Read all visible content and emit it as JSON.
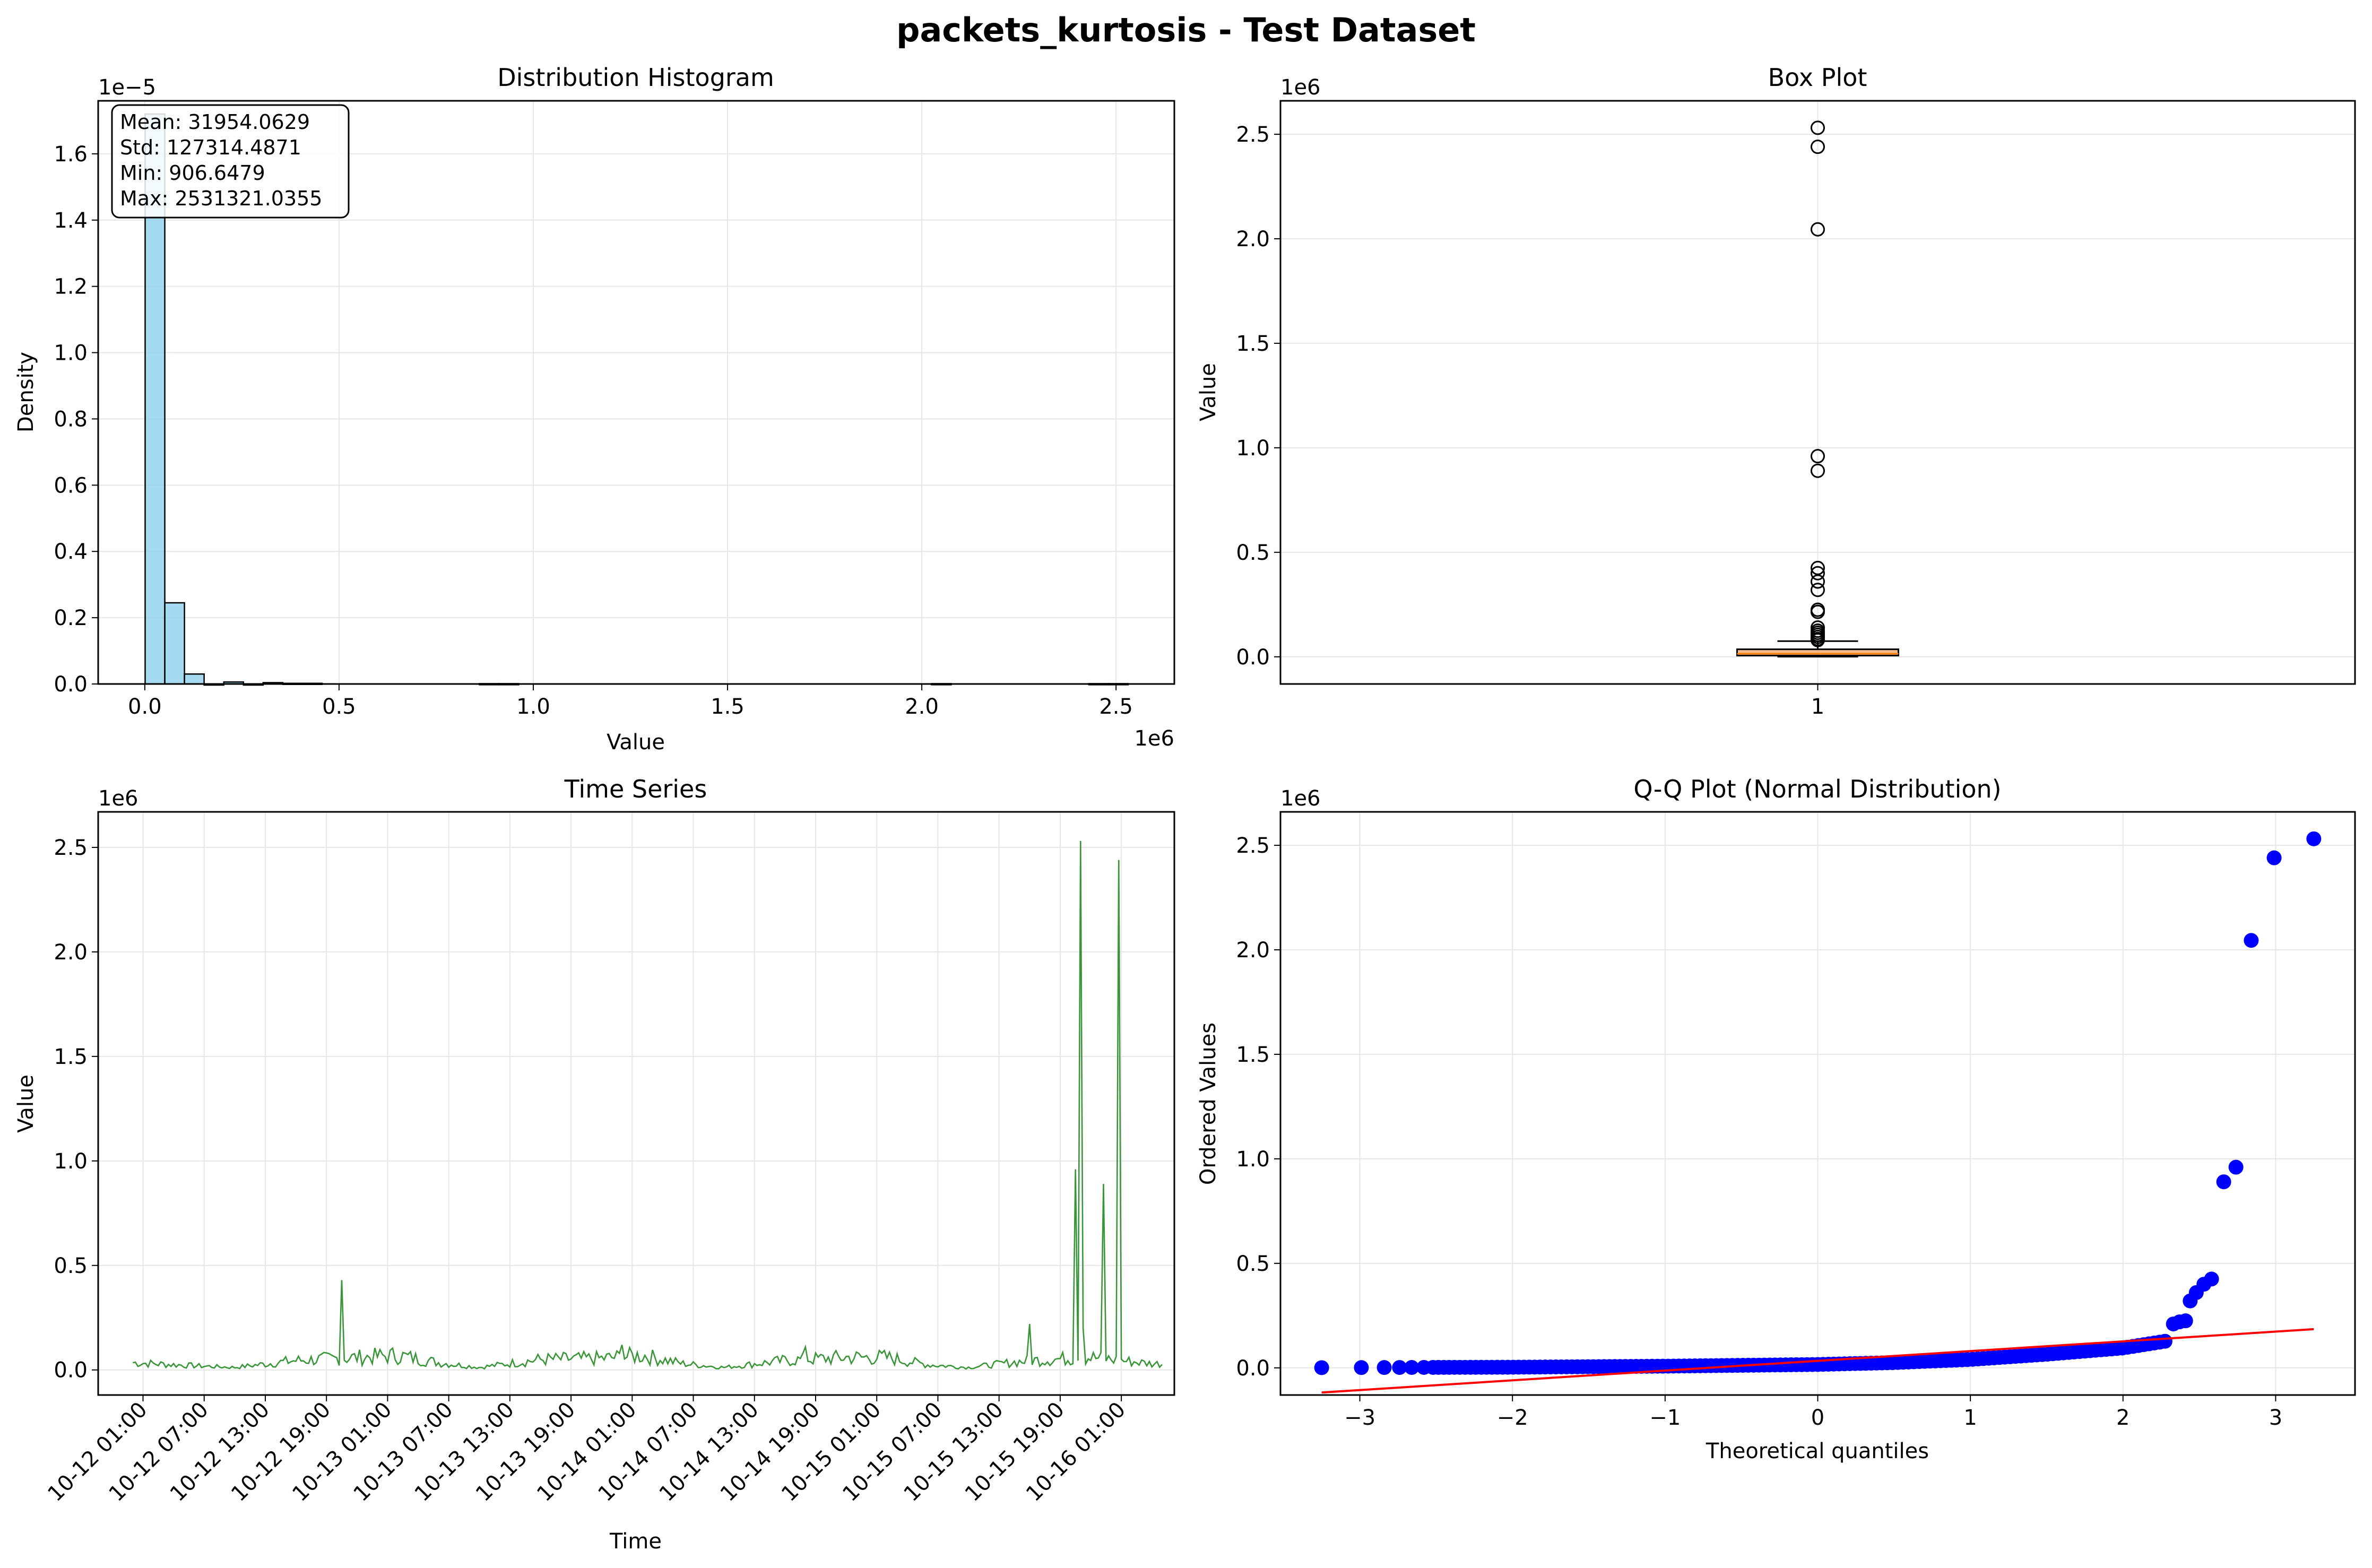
{
  "figure": {
    "title": "packets_kurtosis - Test Dataset"
  },
  "colors": {
    "hist_fill": "#87ceeb",
    "box_fill": "#f4a460",
    "line": "#228b22",
    "qq_points": "#0000ff",
    "qq_line": "#ff0000",
    "grid": "#e6e6e6"
  },
  "chart_data": [
    {
      "type": "bar",
      "title": "Distribution Histogram",
      "xlabel": "Value",
      "ylabel": "Density",
      "x_offset_label": "1e6",
      "y_offset_label": "1e−5",
      "xlim": [
        -0.12,
        2.65
      ],
      "ylim": [
        0,
        1.76
      ],
      "xticks": [
        0.0,
        0.5,
        1.0,
        1.5,
        2.0,
        2.5
      ],
      "xtick_labels": [
        "0.0",
        "0.5",
        "1.0",
        "1.5",
        "2.0",
        "2.5"
      ],
      "yticks": [
        0.0,
        0.2,
        0.4,
        0.6,
        0.8,
        1.0,
        1.2,
        1.4,
        1.6
      ],
      "ytick_labels": [
        "0.0",
        "0.2",
        "0.4",
        "0.6",
        "0.8",
        "1.0",
        "1.2",
        "1.4",
        "1.6"
      ],
      "bin_width": 0.0506,
      "bins": [
        {
          "x": 0.0009,
          "density": 1.72
        },
        {
          "x": 0.0515,
          "density": 0.245
        },
        {
          "x": 0.1021,
          "density": 0.03
        },
        {
          "x": 0.1527,
          "density": 0.0
        },
        {
          "x": 0.2034,
          "density": 0.006
        },
        {
          "x": 0.254,
          "density": 0.0
        },
        {
          "x": 0.3046,
          "density": 0.004
        },
        {
          "x": 0.3552,
          "density": 0.002
        },
        {
          "x": 0.4058,
          "density": 0.002
        },
        {
          "x": 0.8613,
          "density": 0.001
        },
        {
          "x": 0.9119,
          "density": 0.001
        },
        {
          "x": 2.0251,
          "density": 0.001
        },
        {
          "x": 2.43,
          "density": 0.001
        },
        {
          "x": 2.4806,
          "density": 0.001
        }
      ],
      "stats_lines": [
        "Mean: 31954.0629",
        "Std: 127314.4871",
        "Min: 906.6479",
        "Max: 2531321.0355"
      ],
      "grid": true
    },
    {
      "type": "box",
      "title": "Box Plot",
      "ylabel": "Value",
      "y_offset_label": "1e6",
      "ylim": [
        -0.13,
        2.66
      ],
      "yticks": [
        0.0,
        0.5,
        1.0,
        1.5,
        2.0,
        2.5
      ],
      "ytick_labels": [
        "0.0",
        "0.5",
        "1.0",
        "1.5",
        "2.0",
        "2.5"
      ],
      "xtick_labels": [
        "1"
      ],
      "box": {
        "q1": 0.006,
        "median": 0.015,
        "q3": 0.036,
        "whisker_low": 0.0009,
        "whisker_high": 0.075
      },
      "outliers": [
        2.531,
        2.44,
        2.045,
        0.96,
        0.89,
        0.425,
        0.4,
        0.36,
        0.32,
        0.225,
        0.215,
        0.14,
        0.125,
        0.115,
        0.105,
        0.095,
        0.085,
        0.08
      ],
      "grid": true
    },
    {
      "type": "line",
      "title": "Time Series",
      "xlabel": "Time",
      "ylabel": "Value",
      "y_offset_label": "1e6",
      "x_start": "10-12 00:00",
      "x_end": "10-16 05:00",
      "ylim": [
        -0.12,
        2.67
      ],
      "yticks": [
        0.0,
        0.5,
        1.0,
        1.5,
        2.0,
        2.5
      ],
      "ytick_labels": [
        "0.0",
        "0.5",
        "1.0",
        "1.5",
        "2.0",
        "2.5"
      ],
      "xticks": [
        "10-12 01:00",
        "10-12 07:00",
        "10-12 13:00",
        "10-12 19:00",
        "10-13 01:00",
        "10-13 07:00",
        "10-13 13:00",
        "10-13 19:00",
        "10-14 01:00",
        "10-14 07:00",
        "10-14 13:00",
        "10-14 19:00",
        "10-15 01:00",
        "10-15 07:00",
        "10-15 13:00",
        "10-15 19:00",
        "10-16 01:00"
      ],
      "baseline_pattern": [
        {
          "t": "10-12 00:00",
          "v": 0.035
        },
        {
          "t": "10-12 06:00",
          "v": 0.02
        },
        {
          "t": "10-12 10:00",
          "v": 0.012
        },
        {
          "t": "10-12 16:00",
          "v": 0.045
        },
        {
          "t": "10-12 22:00",
          "v": 0.06
        },
        {
          "t": "10-13 02:00",
          "v": 0.07
        },
        {
          "t": "10-13 06:00",
          "v": 0.035
        },
        {
          "t": "10-13 10:00",
          "v": 0.012
        },
        {
          "t": "10-13 16:00",
          "v": 0.05
        },
        {
          "t": "10-13 22:00",
          "v": 0.055
        },
        {
          "t": "10-14 02:00",
          "v": 0.07
        },
        {
          "t": "10-14 06:00",
          "v": 0.03
        },
        {
          "t": "10-14 10:00",
          "v": 0.012
        },
        {
          "t": "10-14 16:00",
          "v": 0.045
        },
        {
          "t": "10-14 22:00",
          "v": 0.06
        },
        {
          "t": "10-15 02:00",
          "v": 0.06
        },
        {
          "t": "10-15 06:00",
          "v": 0.025
        },
        {
          "t": "10-15 10:00",
          "v": 0.012
        },
        {
          "t": "10-15 16:00",
          "v": 0.045
        },
        {
          "t": "10-15 22:00",
          "v": 0.06
        },
        {
          "t": "10-16 04:00",
          "v": 0.03
        }
      ],
      "spikes": [
        {
          "t": "10-12 20:30",
          "v": 0.43
        },
        {
          "t": "10-14 00:00",
          "v": 0.12
        },
        {
          "t": "10-14 18:00",
          "v": 0.11
        },
        {
          "t": "10-15 16:00",
          "v": 0.22
        },
        {
          "t": "10-15 20:30",
          "v": 0.96
        },
        {
          "t": "10-15 21:00",
          "v": 2.531
        },
        {
          "t": "10-15 21:20",
          "v": 0.2
        },
        {
          "t": "10-15 23:10",
          "v": 0.89
        },
        {
          "t": "10-16 00:45",
          "v": 2.44
        }
      ],
      "grid": true
    },
    {
      "type": "scatter",
      "title": "Q-Q Plot (Normal Distribution)",
      "xlabel": "Theoretical quantiles",
      "ylabel": "Ordered Values",
      "y_offset_label": "1e6",
      "xlim": [
        -3.52,
        3.52
      ],
      "ylim": [
        -0.13,
        2.66
      ],
      "xticks": [
        -3,
        -2,
        -1,
        0,
        1,
        2,
        3
      ],
      "xtick_labels": [
        "−3",
        "−2",
        "−1",
        "0",
        "1",
        "2",
        "3"
      ],
      "yticks": [
        0.0,
        0.5,
        1.0,
        1.5,
        2.0,
        2.5
      ],
      "ytick_labels": [
        "0.0",
        "0.5",
        "1.0",
        "1.5",
        "2.0",
        "2.5"
      ],
      "curve": [
        {
          "x": -3.25,
          "y": 0.0009
        },
        {
          "x": -2.0,
          "y": 0.003
        },
        {
          "x": -1.0,
          "y": 0.008
        },
        {
          "x": 0.0,
          "y": 0.016
        },
        {
          "x": 0.5,
          "y": 0.025
        },
        {
          "x": 1.0,
          "y": 0.04
        },
        {
          "x": 1.5,
          "y": 0.065
        },
        {
          "x": 2.0,
          "y": 0.095
        },
        {
          "x": 2.3,
          "y": 0.13
        }
      ],
      "tail_points": [
        {
          "x": 2.33,
          "y": 0.21
        },
        {
          "x": 2.37,
          "y": 0.22
        },
        {
          "x": 2.41,
          "y": 0.225
        },
        {
          "x": 2.44,
          "y": 0.32
        },
        {
          "x": 2.48,
          "y": 0.36
        },
        {
          "x": 2.53,
          "y": 0.4
        },
        {
          "x": 2.58,
          "y": 0.425
        },
        {
          "x": 2.66,
          "y": 0.89
        },
        {
          "x": 2.74,
          "y": 0.96
        },
        {
          "x": 2.84,
          "y": 2.045
        },
        {
          "x": 2.99,
          "y": 2.44
        },
        {
          "x": 3.25,
          "y": 2.531
        }
      ],
      "fit_line": {
        "x": [
          -3.25,
          3.25
        ],
        "y": [
          -0.118,
          0.185
        ]
      },
      "grid": true
    }
  ]
}
